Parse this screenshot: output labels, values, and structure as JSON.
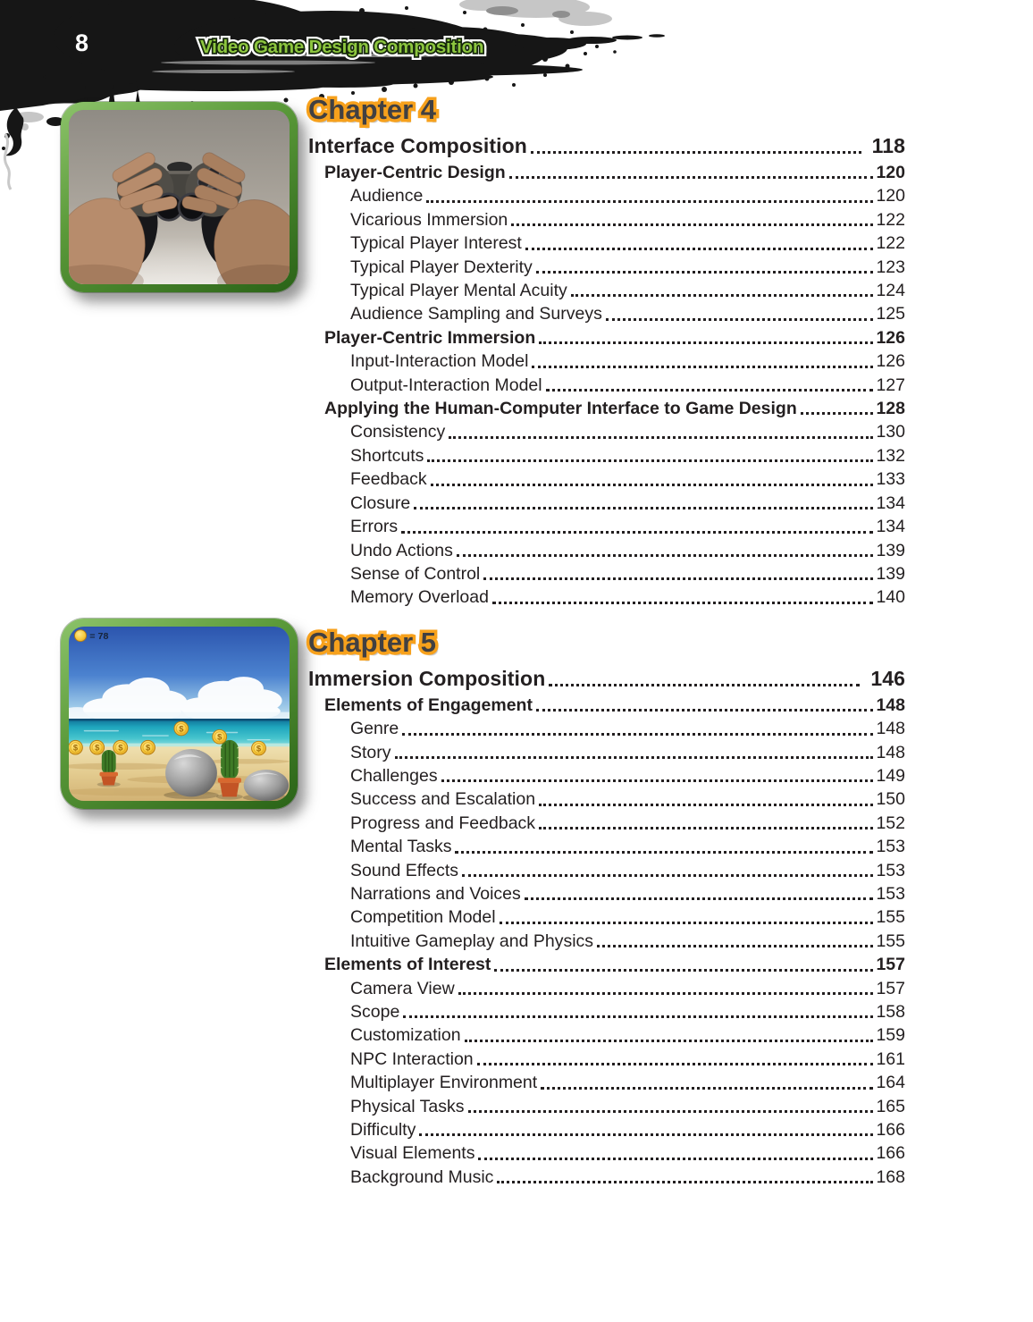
{
  "header": {
    "page_number": "8",
    "book_title": "Video Game Design Composition",
    "band_color": "#161616",
    "title_color": "#8dc63f"
  },
  "figures": {
    "controller_photo": {
      "description": "photo of two hands holding a black gamepad controller"
    },
    "game_screenshot": {
      "hud_text": "= 78",
      "coin_symbol": "$"
    }
  },
  "accent_colors": {
    "chapter_outline": "#f7a11c",
    "chapter_fill": "#414042",
    "body_text": "#231f20",
    "frame_green_light": "#8cc36a",
    "frame_green_dark": "#2a6317"
  },
  "toc": {
    "chapters": [
      {
        "chapter_label": "Chapter 4",
        "title": "Interface Composition",
        "page": "118",
        "entries": [
          {
            "level": 1,
            "label": "Player-Centric Design",
            "page": "120"
          },
          {
            "level": 2,
            "label": "Audience",
            "page": "120"
          },
          {
            "level": 2,
            "label": "Vicarious Immersion",
            "page": "122"
          },
          {
            "level": 2,
            "label": "Typical Player Interest",
            "page": "122"
          },
          {
            "level": 2,
            "label": "Typical Player Dexterity",
            "page": "123"
          },
          {
            "level": 2,
            "label": "Typical Player Mental Acuity",
            "page": "124"
          },
          {
            "level": 2,
            "label": "Audience Sampling and Surveys",
            "page": "125"
          },
          {
            "level": 1,
            "label": "Player-Centric Immersion",
            "page": "126"
          },
          {
            "level": 2,
            "label": "Input-Interaction Model",
            "page": "126"
          },
          {
            "level": 2,
            "label": "Output-Interaction Model",
            "page": "127"
          },
          {
            "level": 1,
            "label": "Applying the Human-Computer Interface to Game Design",
            "page": "128"
          },
          {
            "level": 2,
            "label": "Consistency",
            "page": "130"
          },
          {
            "level": 2,
            "label": "Shortcuts",
            "page": "132"
          },
          {
            "level": 2,
            "label": "Feedback",
            "page": "133"
          },
          {
            "level": 2,
            "label": "Closure",
            "page": "134"
          },
          {
            "level": 2,
            "label": "Errors",
            "page": "134"
          },
          {
            "level": 2,
            "label": "Undo Actions",
            "page": "139"
          },
          {
            "level": 2,
            "label": "Sense of Control",
            "page": "139"
          },
          {
            "level": 2,
            "label": "Memory Overload",
            "page": "140"
          }
        ]
      },
      {
        "chapter_label": "Chapter 5",
        "title": "Immersion Composition",
        "page": "146",
        "entries": [
          {
            "level": 1,
            "label": "Elements of Engagement",
            "page": "148"
          },
          {
            "level": 2,
            "label": "Genre",
            "page": "148"
          },
          {
            "level": 2,
            "label": "Story",
            "page": "148"
          },
          {
            "level": 2,
            "label": "Challenges",
            "page": "149"
          },
          {
            "level": 2,
            "label": "Success and Escalation",
            "page": "150"
          },
          {
            "level": 2,
            "label": "Progress and Feedback",
            "page": "152"
          },
          {
            "level": 2,
            "label": "Mental Tasks",
            "page": "153"
          },
          {
            "level": 2,
            "label": "Sound Effects",
            "page": "153"
          },
          {
            "level": 2,
            "label": "Narrations and Voices",
            "page": "153"
          },
          {
            "level": 2,
            "label": "Competition Model",
            "page": "155"
          },
          {
            "level": 2,
            "label": "Intuitive Gameplay and Physics",
            "page": "155"
          },
          {
            "level": 1,
            "label": "Elements of Interest",
            "page": "157"
          },
          {
            "level": 2,
            "label": "Camera View",
            "page": "157"
          },
          {
            "level": 2,
            "label": "Scope",
            "page": "158"
          },
          {
            "level": 2,
            "label": "Customization",
            "page": "159"
          },
          {
            "level": 2,
            "label": "NPC Interaction",
            "page": "161"
          },
          {
            "level": 2,
            "label": "Multiplayer Environment",
            "page": "164"
          },
          {
            "level": 2,
            "label": "Physical Tasks",
            "page": "165"
          },
          {
            "level": 2,
            "label": "Difficulty",
            "page": "166"
          },
          {
            "level": 2,
            "label": "Visual Elements",
            "page": "166"
          },
          {
            "level": 2,
            "label": "Background Music",
            "page": "168"
          }
        ]
      }
    ]
  }
}
